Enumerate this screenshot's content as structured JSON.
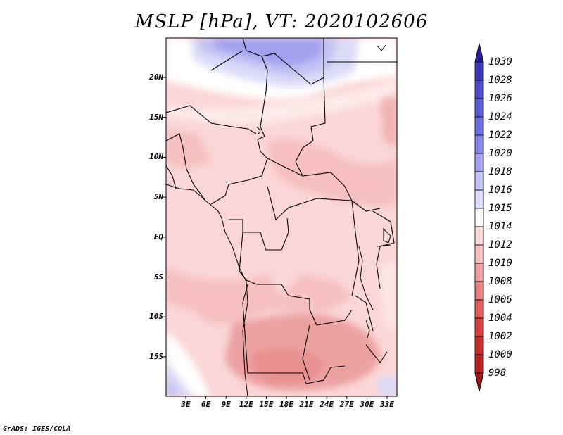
{
  "title": "MSLP [hPa], VT: 2020102606",
  "credit": "GrADS: IGES/COLA",
  "lat_labels": [
    "20N",
    "15N",
    "10N",
    "5N",
    "EQ",
    "5S",
    "10S",
    "15S"
  ],
  "lon_labels": [
    "3E",
    "6E",
    "9E",
    "12E",
    "15E",
    "18E",
    "21E",
    "24E",
    "27E",
    "30E",
    "33E"
  ],
  "colorbar": {
    "levels": [
      "1030",
      "1028",
      "1026",
      "1024",
      "1022",
      "1020",
      "1018",
      "1016",
      "1015",
      "1014",
      "1012",
      "1010",
      "1008",
      "1006",
      "1004",
      "1002",
      "1000",
      "998"
    ],
    "colors": [
      "#2b1fa0",
      "#3a34b8",
      "#4c48c8",
      "#5a5ad2",
      "#6b6cde",
      "#8584e6",
      "#a3a1ee",
      "#c3c2f4",
      "#dcdcf8",
      "#ffffff",
      "#fbd8d8",
      "#f6c0c0",
      "#eca1a1",
      "#e58080",
      "#dd5d5d",
      "#d33f3f",
      "#c62a2a",
      "#b51f1f",
      "#a11616"
    ]
  }
}
